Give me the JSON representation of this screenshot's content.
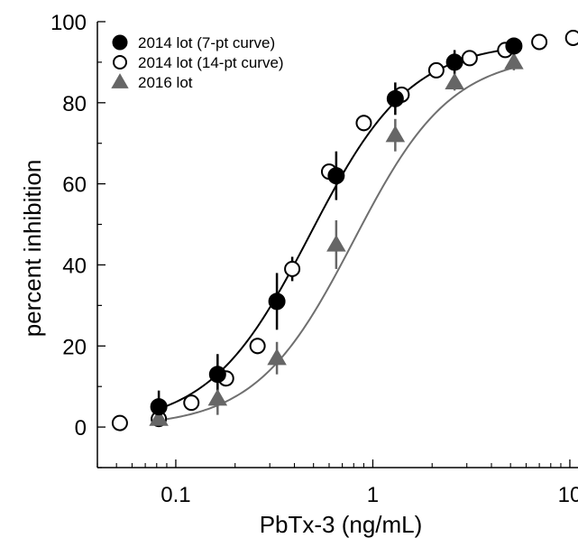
{
  "chart_data": {
    "type": "scatter",
    "title": "",
    "xlabel": "PbTx-3 (ng/mL)",
    "ylabel": "percent inhibition",
    "x_scale": "log",
    "xlim": [
      0.04,
      11
    ],
    "ylim": [
      -10,
      100
    ],
    "x_ticks": [
      {
        "value": 0.1,
        "label": "0.1"
      },
      {
        "value": 1,
        "label": "1"
      },
      {
        "value": 10,
        "label": "10"
      }
    ],
    "y_ticks": [
      {
        "value": 0,
        "label": "0"
      },
      {
        "value": 20,
        "label": "20"
      },
      {
        "value": 40,
        "label": "40"
      },
      {
        "value": 60,
        "label": "60"
      },
      {
        "value": 80,
        "label": "80"
      },
      {
        "value": 100,
        "label": "100"
      }
    ],
    "grid": false,
    "legend_position": "top-left",
    "series": [
      {
        "name": "2014 lot (14-pt curve)",
        "marker": "open-circle",
        "color": "#000000",
        "points": [
          {
            "x": 0.052,
            "y": 1,
            "err": 0
          },
          {
            "x": 0.082,
            "y": 2,
            "err": 0
          },
          {
            "x": 0.12,
            "y": 6,
            "err": 0
          },
          {
            "x": 0.18,
            "y": 12,
            "err": 0
          },
          {
            "x": 0.26,
            "y": 20,
            "err": 2
          },
          {
            "x": 0.39,
            "y": 39,
            "err": 3
          },
          {
            "x": 0.6,
            "y": 63,
            "err": 0
          },
          {
            "x": 0.9,
            "y": 75,
            "err": 2
          },
          {
            "x": 1.4,
            "y": 82,
            "err": 0
          },
          {
            "x": 2.1,
            "y": 88,
            "err": 0
          },
          {
            "x": 3.1,
            "y": 91,
            "err": 1
          },
          {
            "x": 4.7,
            "y": 93,
            "err": 0
          },
          {
            "x": 7.0,
            "y": 95,
            "err": 0
          },
          {
            "x": 10.4,
            "y": 96,
            "err": 0
          }
        ]
      },
      {
        "name": "2016 lot",
        "marker": "triangle",
        "color": "#666666",
        "line_color": "#6f6f6f",
        "curve": {
          "bottom": 0,
          "top": 92,
          "ec50": 0.8,
          "hill": 1.75
        },
        "points": [
          {
            "x": 0.082,
            "y": 2,
            "err": 2
          },
          {
            "x": 0.163,
            "y": 7,
            "err": 4
          },
          {
            "x": 0.326,
            "y": 17,
            "err": 4
          },
          {
            "x": 0.652,
            "y": 45,
            "err": 6
          },
          {
            "x": 1.3,
            "y": 72,
            "err": 4
          },
          {
            "x": 2.6,
            "y": 85,
            "err": 2
          },
          {
            "x": 5.2,
            "y": 90,
            "err": 2
          }
        ]
      },
      {
        "name": "2014 lot (7-pt curve)",
        "marker": "filled-circle",
        "color": "#000000",
        "line_color": "#000000",
        "curve": {
          "bottom": 0,
          "top": 95,
          "ec50": 0.48,
          "hill": 1.7
        },
        "points": [
          {
            "x": 0.082,
            "y": 5,
            "err": 4
          },
          {
            "x": 0.163,
            "y": 13,
            "err": 5
          },
          {
            "x": 0.326,
            "y": 31,
            "err": 7
          },
          {
            "x": 0.652,
            "y": 62,
            "err": 6
          },
          {
            "x": 1.3,
            "y": 81,
            "err": 4
          },
          {
            "x": 2.6,
            "y": 90,
            "err": 3
          },
          {
            "x": 5.2,
            "y": 94,
            "err": 2
          }
        ]
      }
    ],
    "legend": [
      {
        "label": "2014 lot (7-pt curve)",
        "marker": "filled-circle",
        "color": "#000000"
      },
      {
        "label": "2014 lot (14-pt curve)",
        "marker": "open-circle",
        "color": "#000000"
      },
      {
        "label": "2016 lot",
        "marker": "triangle",
        "color": "#666666"
      }
    ]
  }
}
